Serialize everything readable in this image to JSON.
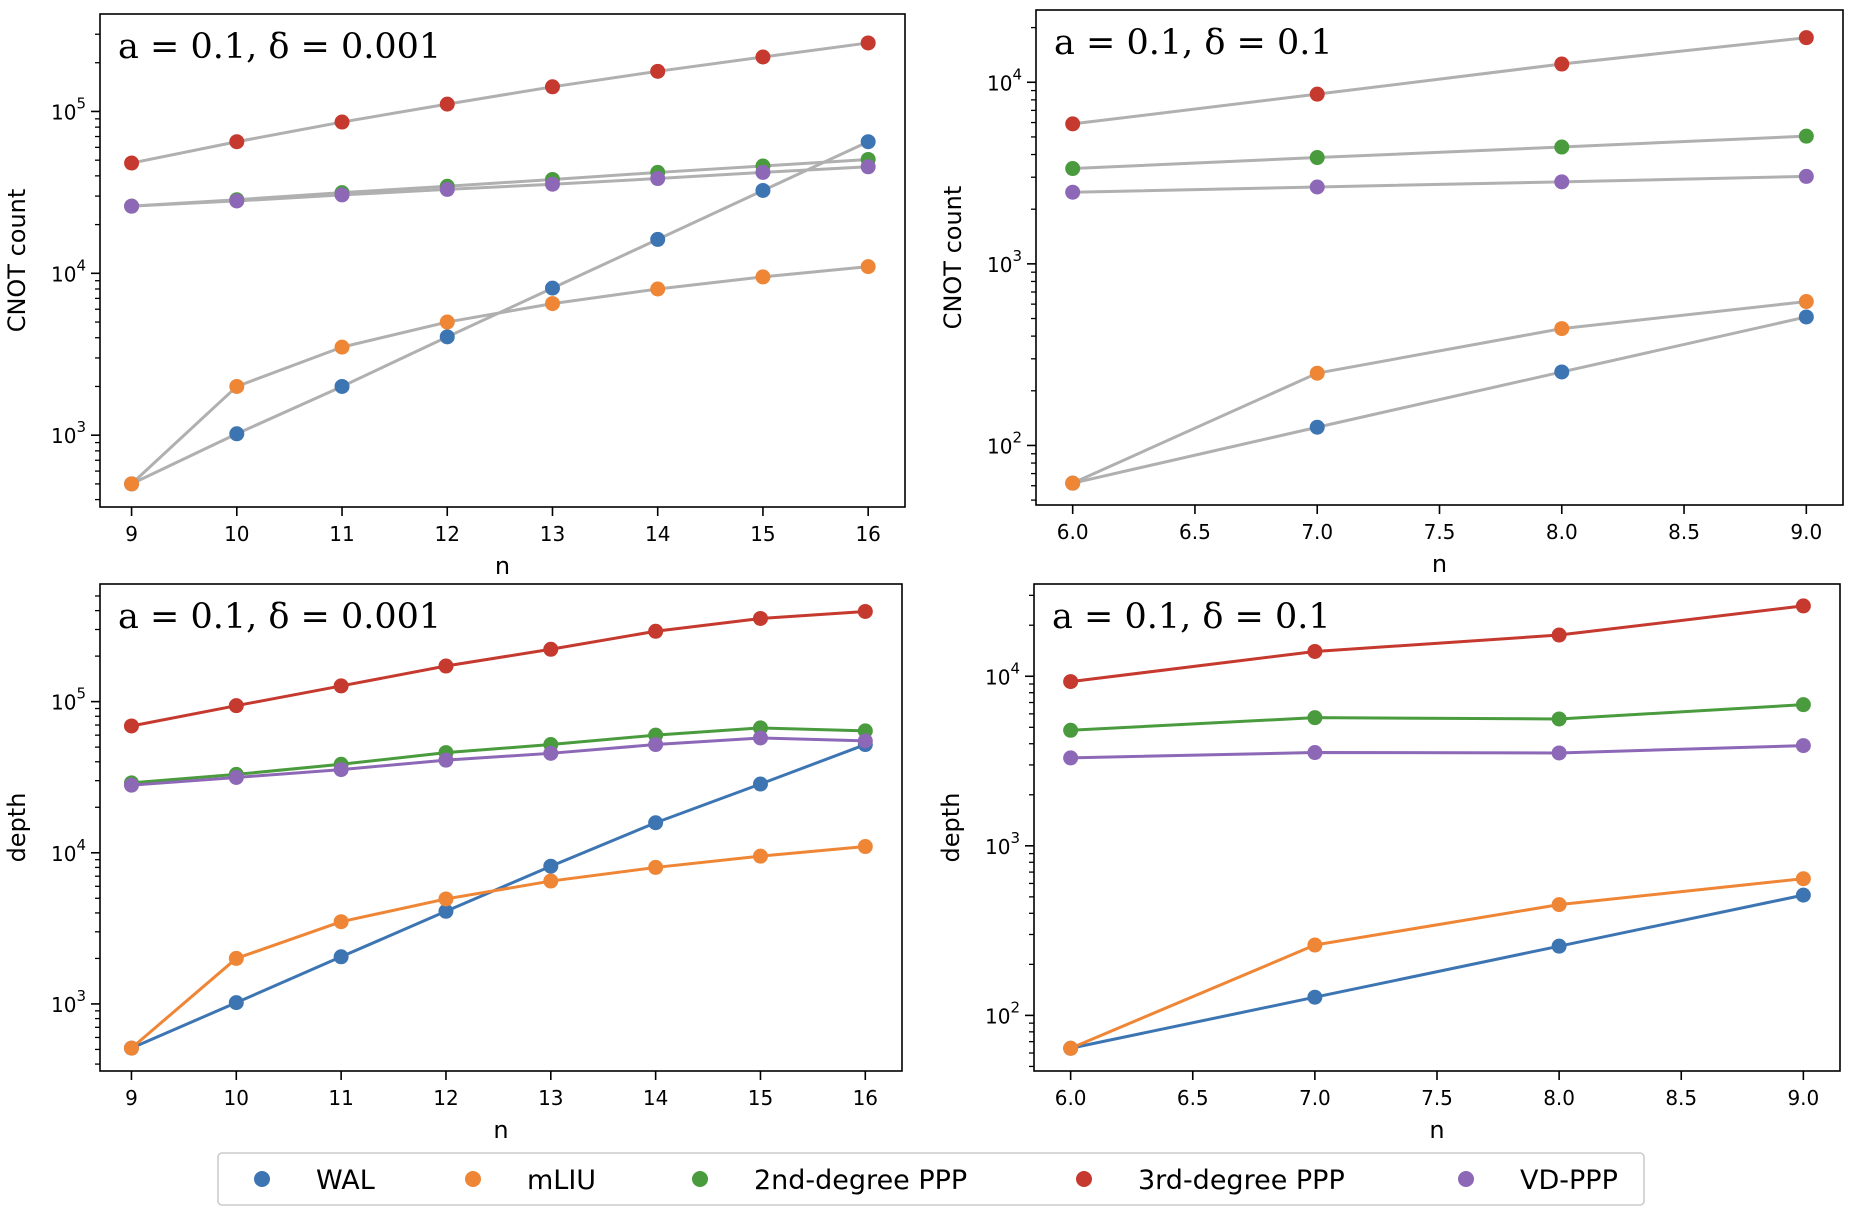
{
  "figure": {
    "name": "parameter-sweep-figure"
  },
  "legend": [
    {
      "label": "WAL",
      "color": "#3d75b3"
    },
    {
      "label": "mLIU",
      "color": "#ef8636"
    },
    {
      "label": "2nd-degree PPP",
      "color": "#4a9b3e"
    },
    {
      "label": "3rd-degree PPP",
      "color": "#c5392f"
    },
    {
      "label": "VD-PPP",
      "color": "#8d68b7"
    }
  ],
  "chart_data": [
    {
      "type": "scatter",
      "title": "a = 0.1, δ = 0.001",
      "xlabel": "n",
      "ylabel": "CNOT count",
      "yscale": "log",
      "xlim": [
        8.7,
        16.35
      ],
      "ylim": [
        360,
        400000
      ],
      "xticks": [
        9,
        10,
        11,
        12,
        13,
        14,
        15,
        16
      ],
      "xtick_labels": [
        "9",
        "10",
        "11",
        "12",
        "13",
        "14",
        "15",
        "16"
      ],
      "yticks": [
        1000,
        10000,
        100000
      ],
      "ytick_labels": [
        [
          "10",
          "3"
        ],
        [
          "10",
          "4"
        ],
        [
          "10",
          "5"
        ]
      ],
      "connector_lines": "gray",
      "grid": false,
      "x": [
        9,
        10,
        11,
        12,
        13,
        14,
        15,
        16
      ],
      "series": [
        {
          "name": "WAL",
          "color": "#3d75b3",
          "values": [
            500,
            1020,
            2000,
            4050,
            8100,
            16200,
            32500,
            65000
          ]
        },
        {
          "name": "mLIU",
          "color": "#ef8636",
          "values": [
            500,
            2000,
            3500,
            5000,
            6500,
            8000,
            9500,
            11000
          ]
        },
        {
          "name": "2nd-degree PPP",
          "color": "#4a9b3e",
          "values": [
            26000,
            28500,
            31500,
            34500,
            38000,
            42000,
            46000,
            50500
          ]
        },
        {
          "name": "3rd-degree PPP",
          "color": "#c5392f",
          "values": [
            48000,
            65000,
            86000,
            111000,
            142000,
            177000,
            217000,
            265000
          ]
        },
        {
          "name": "VD-PPP",
          "color": "#8d68b7",
          "values": [
            26000,
            28000,
            30500,
            33000,
            35500,
            38500,
            42000,
            45500
          ]
        }
      ]
    },
    {
      "type": "scatter",
      "title": "a = 0.1, δ = 0.1",
      "xlabel": "n",
      "ylabel": "CNOT count",
      "yscale": "log",
      "xlim": [
        5.85,
        9.15
      ],
      "ylim": [
        47,
        25000
      ],
      "xticks": [
        6.0,
        6.5,
        7.0,
        7.5,
        8.0,
        8.5,
        9.0
      ],
      "xtick_labels": [
        "6.0",
        "6.5",
        "7.0",
        "7.5",
        "8.0",
        "8.5",
        "9.0"
      ],
      "yticks": [
        100,
        1000,
        10000
      ],
      "ytick_labels": [
        [
          "10",
          "2"
        ],
        [
          "10",
          "3"
        ],
        [
          "10",
          "4"
        ]
      ],
      "connector_lines": "gray",
      "grid": false,
      "x": [
        6,
        7,
        8,
        9
      ],
      "series": [
        {
          "name": "WAL",
          "color": "#3d75b3",
          "values": [
            62,
            126,
            254,
            510
          ]
        },
        {
          "name": "mLIU",
          "color": "#ef8636",
          "values": [
            62,
            250,
            440,
            620
          ]
        },
        {
          "name": "2nd-degree PPP",
          "color": "#4a9b3e",
          "values": [
            3350,
            3850,
            4400,
            5050
          ]
        },
        {
          "name": "3rd-degree PPP",
          "color": "#c5392f",
          "values": [
            5900,
            8600,
            12600,
            17600
          ]
        },
        {
          "name": "VD-PPP",
          "color": "#8d68b7",
          "values": [
            2480,
            2650,
            2830,
            3030
          ]
        }
      ]
    },
    {
      "type": "line",
      "title": "a = 0.1, δ = 0.001",
      "xlabel": "n",
      "ylabel": "depth",
      "yscale": "log",
      "xlim": [
        8.7,
        16.35
      ],
      "ylim": [
        360,
        600000
      ],
      "xticks": [
        9,
        10,
        11,
        12,
        13,
        14,
        15,
        16
      ],
      "xtick_labels": [
        "9",
        "10",
        "11",
        "12",
        "13",
        "14",
        "15",
        "16"
      ],
      "yticks": [
        1000,
        10000,
        100000
      ],
      "ytick_labels": [
        [
          "10",
          "3"
        ],
        [
          "10",
          "4"
        ],
        [
          "10",
          "5"
        ]
      ],
      "connector_lines": "colored",
      "grid": false,
      "x": [
        9,
        10,
        11,
        12,
        13,
        14,
        15,
        16
      ],
      "series": [
        {
          "name": "WAL",
          "color": "#3d75b3",
          "values": [
            510,
            1020,
            2050,
            4100,
            8150,
            15800,
            28500,
            52000
          ]
        },
        {
          "name": "mLIU",
          "color": "#ef8636",
          "values": [
            510,
            2000,
            3500,
            4950,
            6500,
            8000,
            9500,
            11000
          ]
        },
        {
          "name": "2nd-degree PPP",
          "color": "#4a9b3e",
          "values": [
            29000,
            33000,
            38500,
            46000,
            52000,
            60000,
            67000,
            64000
          ]
        },
        {
          "name": "3rd-degree PPP",
          "color": "#c5392f",
          "values": [
            69000,
            94000,
            127000,
            172000,
            222000,
            292000,
            355000,
            395000
          ]
        },
        {
          "name": "VD-PPP",
          "color": "#8d68b7",
          "values": [
            28000,
            31500,
            35500,
            41000,
            45500,
            52000,
            57500,
            55000
          ]
        }
      ]
    },
    {
      "type": "line",
      "title": "a = 0.1, δ = 0.1",
      "xlabel": "n",
      "ylabel": "depth",
      "yscale": "log",
      "xlim": [
        5.85,
        9.15
      ],
      "ylim": [
        47,
        35000
      ],
      "xticks": [
        6.0,
        6.5,
        7.0,
        7.5,
        8.0,
        8.5,
        9.0
      ],
      "xtick_labels": [
        "6.0",
        "6.5",
        "7.0",
        "7.5",
        "8.0",
        "8.5",
        "9.0"
      ],
      "yticks": [
        100,
        1000,
        10000
      ],
      "ytick_labels": [
        [
          "10",
          "2"
        ],
        [
          "10",
          "3"
        ],
        [
          "10",
          "4"
        ]
      ],
      "connector_lines": "colored",
      "grid": false,
      "x": [
        6,
        7,
        8,
        9
      ],
      "series": [
        {
          "name": "WAL",
          "color": "#3d75b3",
          "values": [
            64,
            128,
            256,
            512
          ]
        },
        {
          "name": "mLIU",
          "color": "#ef8636",
          "values": [
            64,
            260,
            450,
            640
          ]
        },
        {
          "name": "2nd-degree PPP",
          "color": "#4a9b3e",
          "values": [
            4800,
            5700,
            5600,
            6800
          ]
        },
        {
          "name": "3rd-degree PPP",
          "color": "#c5392f",
          "values": [
            9300,
            14000,
            17500,
            26000
          ]
        },
        {
          "name": "VD-PPP",
          "color": "#8d68b7",
          "values": [
            3300,
            3550,
            3530,
            3900
          ]
        }
      ]
    }
  ]
}
